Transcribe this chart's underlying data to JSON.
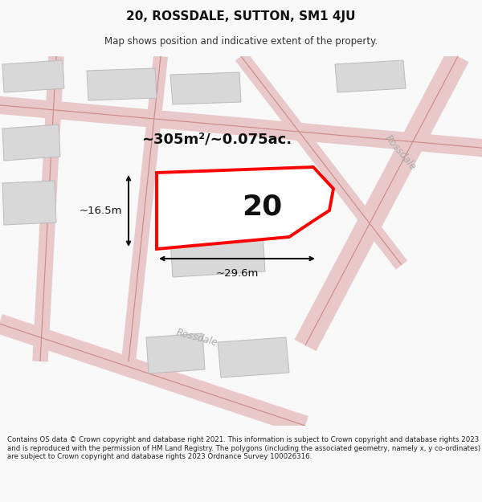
{
  "title": "20, ROSSDALE, SUTTON, SM1 4JU",
  "subtitle": "Map shows position and indicative extent of the property.",
  "footer": "Contains OS data © Crown copyright and database right 2021. This information is subject to Crown copyright and database rights 2023 and is reproduced with the permission of HM Land Registry. The polygons (including the associated geometry, namely x, y co-ordinates) are subject to Crown copyright and database rights 2023 Ordnance Survey 100026316.",
  "area_label": "~305m²/~0.075ac.",
  "width_label": "~29.6m",
  "height_label": "~16.5m",
  "number_label": "20",
  "bg_color": "#f8f8f8",
  "map_bg": "#efefef",
  "road_fill": "#e8c8c8",
  "road_center": "#cc8888",
  "building_color": "#d8d8d8",
  "building_edge": "#bbbbbb",
  "plot_color": "#ff0000",
  "plot_fill": "#ffffff",
  "annotation_color": "#111111",
  "rossdale_label_color": "#aaaaaa"
}
